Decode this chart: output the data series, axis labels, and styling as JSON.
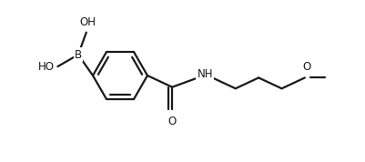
{
  "background_color": "#ffffff",
  "line_color": "#1a1a1a",
  "line_width": 1.6,
  "font_size": 8.5,
  "fig_width": 4.02,
  "fig_height": 1.78,
  "dpi": 100,
  "labels": {
    "OH_top": "OH",
    "B": "B",
    "HO_left": "HO",
    "NH": "NH",
    "O_right": "O",
    "carbonyl_O": "O"
  }
}
